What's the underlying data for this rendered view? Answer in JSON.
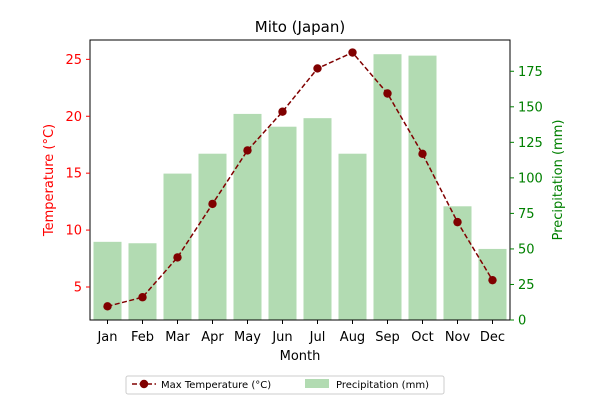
{
  "chart_data": {
    "type": "bar+line",
    "title": "Mito (Japan)",
    "xlabel": "Month",
    "categories": [
      "Jan",
      "Feb",
      "Mar",
      "Apr",
      "May",
      "Jun",
      "Jul",
      "Aug",
      "Sep",
      "Oct",
      "Nov",
      "Dec"
    ],
    "left_axis": {
      "label": "Temperature (°C)",
      "color": "#ff0000",
      "ylim": [
        2.1,
        26.7
      ],
      "ticks": [
        5,
        10,
        15,
        20,
        25
      ]
    },
    "right_axis": {
      "label": "Precipitation (mm)",
      "color": "#008000",
      "ylim": [
        0,
        197
      ],
      "ticks": [
        0,
        25,
        50,
        75,
        100,
        125,
        150,
        175
      ]
    },
    "series": [
      {
        "name": "Max Temperature (°C)",
        "kind": "line",
        "axis": "left",
        "color": "#800000",
        "line_style": "dashed",
        "marker": "circle",
        "values": [
          3.3,
          4.1,
          7.6,
          12.3,
          17.0,
          20.4,
          24.2,
          25.6,
          22.0,
          16.7,
          10.7,
          5.6
        ]
      },
      {
        "name": "Precipitation (mm)",
        "kind": "bar",
        "axis": "right",
        "color": "#b2dbb2",
        "values": [
          55,
          54,
          103,
          117,
          145,
          136,
          142,
          117,
          187,
          186,
          80,
          50
        ]
      }
    ],
    "legend": {
      "placement": "bottom-center",
      "columns": 2
    },
    "grid": false
  }
}
